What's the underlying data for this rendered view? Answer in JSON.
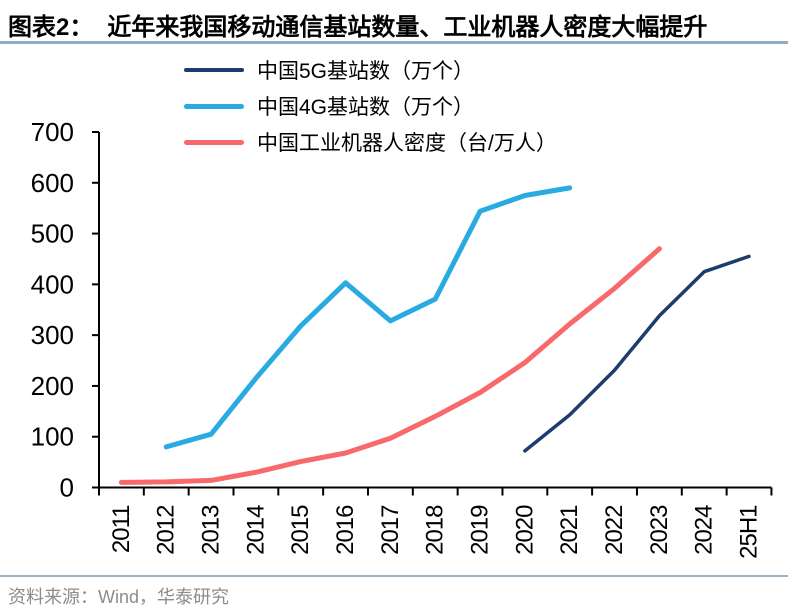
{
  "header": {
    "figure_label": "图表2：",
    "title": "近年来我国移动通信基站数量、工业机器人密度大幅提升"
  },
  "footer": {
    "source": "资料来源：Wind，华泰研究"
  },
  "chart_data": {
    "type": "line",
    "title": "近年来我国移动通信基站数量、工业机器人密度大幅提升",
    "xlabel": "",
    "ylabel": "",
    "categories": [
      "2011",
      "2012",
      "2013",
      "2014",
      "2015",
      "2016",
      "2017",
      "2018",
      "2019",
      "2020",
      "2021",
      "2022",
      "2023",
      "2024",
      "25H1"
    ],
    "series": [
      {
        "name": "中国5G基站数（万个）",
        "color": "#1c3d6e",
        "stroke_width": 3.5,
        "values": [
          null,
          null,
          null,
          null,
          null,
          null,
          null,
          null,
          null,
          72,
          143,
          231,
          338,
          425,
          455
        ]
      },
      {
        "name": "中国4G基站数（万个）",
        "color": "#29abe2",
        "stroke_width": 5,
        "values": [
          null,
          80,
          105,
          215,
          318,
          403,
          328,
          371,
          544,
          575,
          590,
          null,
          null,
          null,
          null
        ]
      },
      {
        "name": "中国工业机器人密度（台/万人）",
        "color": "#f8696b",
        "stroke_width": 5,
        "values": [
          10,
          11,
          14,
          30,
          51,
          68,
          97,
          140,
          187,
          246,
          322,
          392,
          470,
          null,
          null
        ]
      }
    ],
    "ylim": [
      0,
      700
    ],
    "ytick_step": 100,
    "grid": false,
    "legend_position": "top-left",
    "axis_color": "#000000",
    "tick_label_color": "#000000"
  }
}
